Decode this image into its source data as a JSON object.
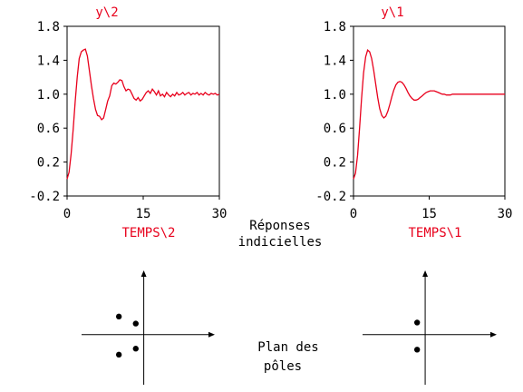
{
  "colors": {
    "curve": "#e8001c",
    "axis": "#000000",
    "label": "#e8001c",
    "background": "#ffffff"
  },
  "captions": {
    "responses_line1": "Réponses",
    "responses_line2": "indicielles",
    "poles_line1": "Plan des",
    "poles_line2": "pôles"
  },
  "chart_data": [
    {
      "type": "line",
      "title": "y\\2",
      "xlabel": "TEMPS\\2",
      "ylabel": "",
      "xlim": [
        0,
        30
      ],
      "ylim": [
        -0.2,
        1.8
      ],
      "xticks": [
        "0",
        "15",
        "30"
      ],
      "yticks": [
        "1.8",
        "1.4",
        "1.0",
        "0.6",
        "0.2",
        "-0.2"
      ],
      "series": [
        {
          "x": [
            0,
            0.4,
            0.8,
            1.2,
            1.6,
            2.0,
            2.4,
            2.8,
            3.2,
            3.6,
            4.0,
            4.4,
            4.8,
            5.2,
            5.6,
            6.0,
            6.4,
            6.8,
            7.2,
            7.6,
            8.0,
            8.4,
            8.8,
            9.2,
            9.6,
            10.0,
            10.4,
            10.8,
            11.2,
            11.6,
            12.0,
            12.4,
            12.8,
            13.2,
            13.6,
            14.0,
            14.4,
            14.8,
            15.2,
            15.6,
            16.0,
            16.4,
            16.8,
            17.2,
            17.6,
            18.0,
            18.4,
            18.8,
            19.2,
            19.6,
            20.0,
            20.4,
            20.8,
            21.2,
            21.6,
            22.0,
            22.4,
            22.8,
            23.2,
            23.6,
            24.0,
            24.4,
            24.8,
            25.2,
            25.6,
            26.0,
            26.4,
            26.8,
            27.2,
            27.6,
            28.0,
            28.4,
            28.8,
            29.2,
            29.6,
            30.0
          ],
          "y": [
            0.0,
            0.08,
            0.3,
            0.58,
            0.92,
            1.2,
            1.42,
            1.5,
            1.52,
            1.53,
            1.45,
            1.28,
            1.1,
            0.95,
            0.82,
            0.75,
            0.74,
            0.7,
            0.72,
            0.82,
            0.92,
            0.98,
            1.1,
            1.13,
            1.12,
            1.14,
            1.17,
            1.16,
            1.09,
            1.04,
            1.06,
            1.05,
            1.0,
            0.95,
            0.93,
            0.96,
            0.92,
            0.94,
            0.98,
            1.02,
            1.04,
            1.01,
            1.06,
            1.03,
            0.99,
            1.04,
            0.98,
            1.0,
            0.97,
            1.02,
            0.99,
            0.97,
            1.0,
            0.98,
            1.02,
            0.99,
            1.0,
            1.02,
            0.99,
            1.01,
            1.02,
            0.99,
            1.01,
            1.0,
            1.02,
            0.99,
            1.01,
            0.99,
            1.02,
            1.0,
            0.99,
            1.01,
            1.0,
            1.01,
            0.99,
            1.0
          ]
        }
      ]
    },
    {
      "type": "line",
      "title": "y\\1",
      "xlabel": "TEMPS\\1",
      "ylabel": "",
      "xlim": [
        0,
        30
      ],
      "ylim": [
        -0.2,
        1.8
      ],
      "xticks": [
        "0",
        "15",
        "30"
      ],
      "yticks": [
        "1.8",
        "1.4",
        "1.0",
        "0.6",
        "0.2",
        "-0.2"
      ],
      "series": [
        {
          "x": [
            0,
            0.4,
            0.8,
            1.2,
            1.6,
            2.0,
            2.4,
            2.8,
            3.2,
            3.6,
            4.0,
            4.4,
            4.8,
            5.2,
            5.6,
            6.0,
            6.4,
            6.8,
            7.2,
            7.6,
            8.0,
            8.4,
            8.8,
            9.2,
            9.6,
            10.0,
            10.4,
            10.8,
            11.2,
            11.6,
            12.0,
            12.4,
            12.8,
            13.2,
            13.6,
            14.0,
            14.4,
            14.8,
            15.2,
            15.6,
            16.0,
            16.4,
            16.8,
            17.2,
            17.6,
            18.0,
            18.4,
            18.8,
            19.2,
            19.6,
            20.0,
            21.0,
            22.0,
            23.0,
            24.0,
            25.0,
            26.0,
            27.0,
            28.0,
            29.0,
            30.0
          ],
          "y": [
            0.0,
            0.07,
            0.28,
            0.6,
            0.95,
            1.25,
            1.44,
            1.52,
            1.5,
            1.42,
            1.28,
            1.12,
            0.96,
            0.83,
            0.75,
            0.72,
            0.74,
            0.8,
            0.88,
            0.97,
            1.05,
            1.11,
            1.14,
            1.15,
            1.14,
            1.11,
            1.07,
            1.02,
            0.98,
            0.95,
            0.93,
            0.93,
            0.94,
            0.96,
            0.98,
            1.0,
            1.02,
            1.03,
            1.04,
            1.04,
            1.04,
            1.03,
            1.02,
            1.01,
            1.0,
            1.0,
            0.99,
            0.99,
            0.99,
            1.0,
            1.0,
            1.0,
            1.0,
            1.0,
            1.0,
            1.0,
            1.0,
            1.0,
            1.0,
            1.0,
            1.0
          ]
        }
      ]
    },
    {
      "type": "scatter",
      "title": "",
      "xlabel": "",
      "ylabel": "",
      "xlim": [
        -3.5,
        4
      ],
      "ylim": [
        -2.5,
        3.2
      ],
      "series": [
        {
          "x": [
            -1.4,
            -1.4,
            -0.45,
            -0.45
          ],
          "y": [
            0.9,
            -1.0,
            0.55,
            -0.7
          ]
        }
      ]
    },
    {
      "type": "scatter",
      "title": "",
      "xlabel": "",
      "ylabel": "",
      "xlim": [
        -3.5,
        4
      ],
      "ylim": [
        -2.5,
        3.2
      ],
      "series": [
        {
          "x": [
            -0.45,
            -0.45
          ],
          "y": [
            0.6,
            -0.75
          ]
        }
      ]
    }
  ]
}
